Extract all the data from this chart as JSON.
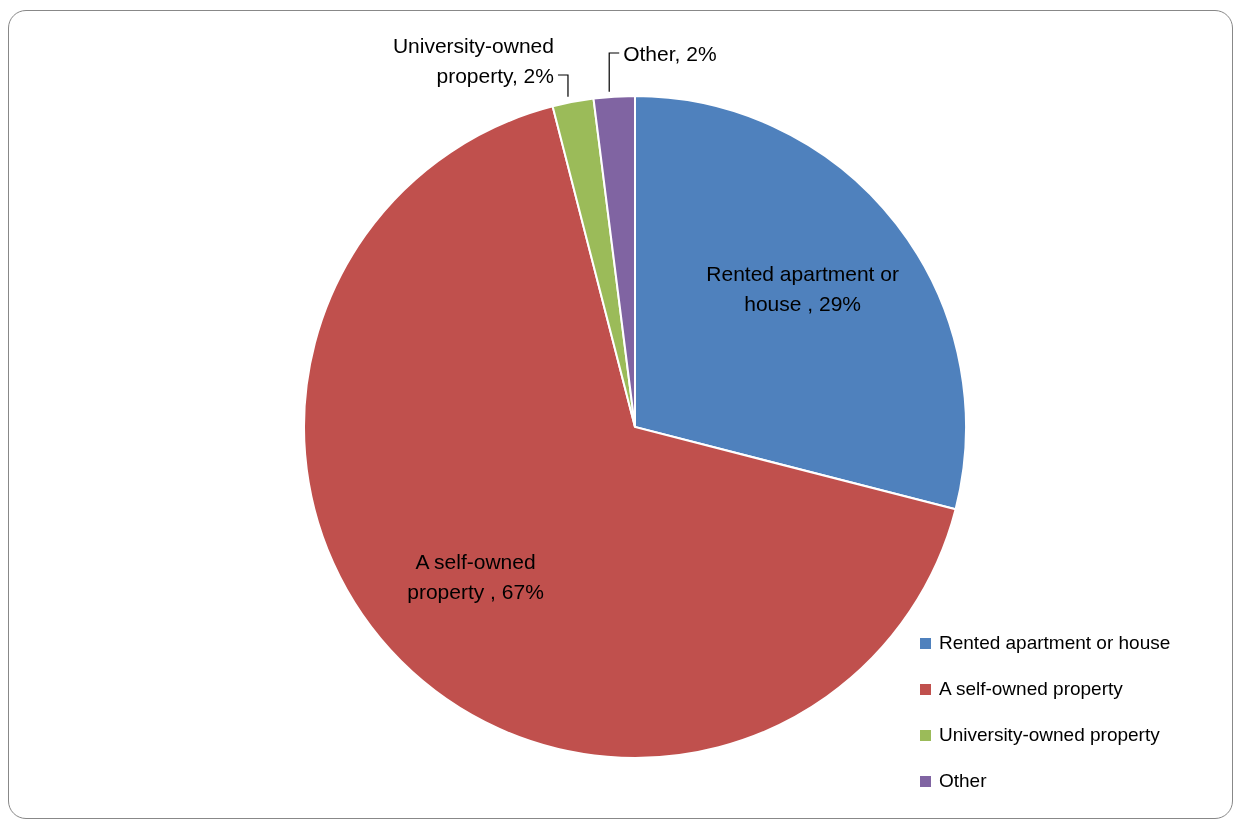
{
  "chart_data": {
    "type": "pie",
    "categories": [
      "Rented apartment or house",
      "A self-owned property",
      "University-owned property",
      "Other"
    ],
    "values": [
      29,
      67,
      2,
      2
    ],
    "colors": [
      "#4f81bd",
      "#c0504d",
      "#9bbb59",
      "#8064a2"
    ],
    "value_labels": [
      "Rented apartment or house , 29%",
      "A self-owned property , 67%",
      "University-owned property, 2%",
      "Other, 2%"
    ],
    "legend": "right"
  }
}
